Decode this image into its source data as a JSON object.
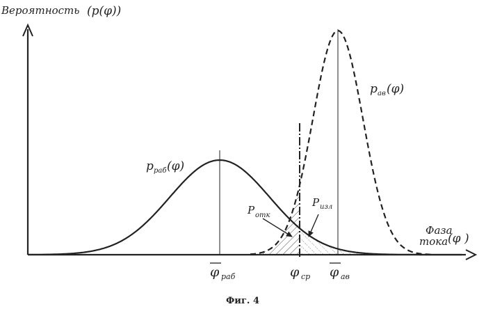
{
  "figure": {
    "caption": "Фиг. 4",
    "y_axis_label": "Вероятность",
    "y_axis_func": "(p(φ))",
    "x_axis_label_line1": "Фаза",
    "x_axis_label_line2": "тока",
    "x_axis_var": "(φ )",
    "curve_work_label": "p",
    "curve_work_sub": "раб",
    "curve_work_arg": "(φ)",
    "curve_fault_label": "p",
    "curve_fault_sub": "ав",
    "curve_fault_arg": "(φ)",
    "area_refuse_label": "P",
    "area_refuse_sub": "отк",
    "area_excess_label": "P",
    "area_excess_sub": "изл",
    "mean_work_symbol": "φ",
    "mean_work_sub": "раб",
    "threshold_symbol": "φ",
    "threshold_sub": "ср",
    "mean_fault_symbol": "φ",
    "mean_fault_sub": "ав"
  },
  "colors": {
    "stroke": "#222222",
    "background": "#ffffff"
  }
}
